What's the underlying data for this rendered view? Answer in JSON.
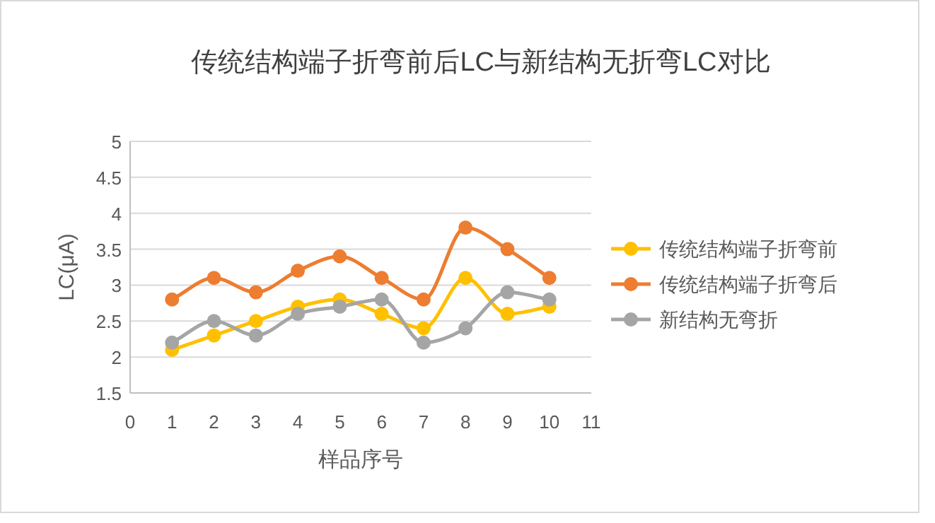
{
  "chart_data": {
    "type": "line",
    "title": "传统结构端子折弯前后LC与新结构无折弯LC对比",
    "xlabel": "样品序号",
    "ylabel": "LC(μA)",
    "x": [
      1,
      2,
      3,
      4,
      5,
      6,
      7,
      8,
      9,
      10
    ],
    "series": [
      {
        "name": "传统结构端子折弯前",
        "color": "#ffc000",
        "values": [
          2.1,
          2.3,
          2.5,
          2.7,
          2.8,
          2.6,
          2.4,
          3.1,
          2.6,
          2.7
        ]
      },
      {
        "name": "传统结构端子折弯后",
        "color": "#ed7d31",
        "values": [
          2.8,
          3.1,
          2.9,
          3.2,
          3.4,
          3.1,
          2.8,
          3.8,
          3.5,
          3.1
        ]
      },
      {
        "name": "新结构无弯折",
        "color": "#a5a5a5",
        "values": [
          2.2,
          2.5,
          2.3,
          2.6,
          2.7,
          2.8,
          2.2,
          2.4,
          2.9,
          2.8
        ]
      }
    ],
    "xlim": [
      0,
      11
    ],
    "xticks": [
      0,
      1,
      2,
      3,
      4,
      5,
      6,
      7,
      8,
      9,
      10,
      11
    ],
    "ylim": [
      1.5,
      5
    ],
    "yticks": [
      1.5,
      2,
      2.5,
      3,
      3.5,
      4,
      4.5,
      5
    ],
    "grid": "y",
    "legend": "right",
    "marker": "circle",
    "line_style": "solid"
  }
}
